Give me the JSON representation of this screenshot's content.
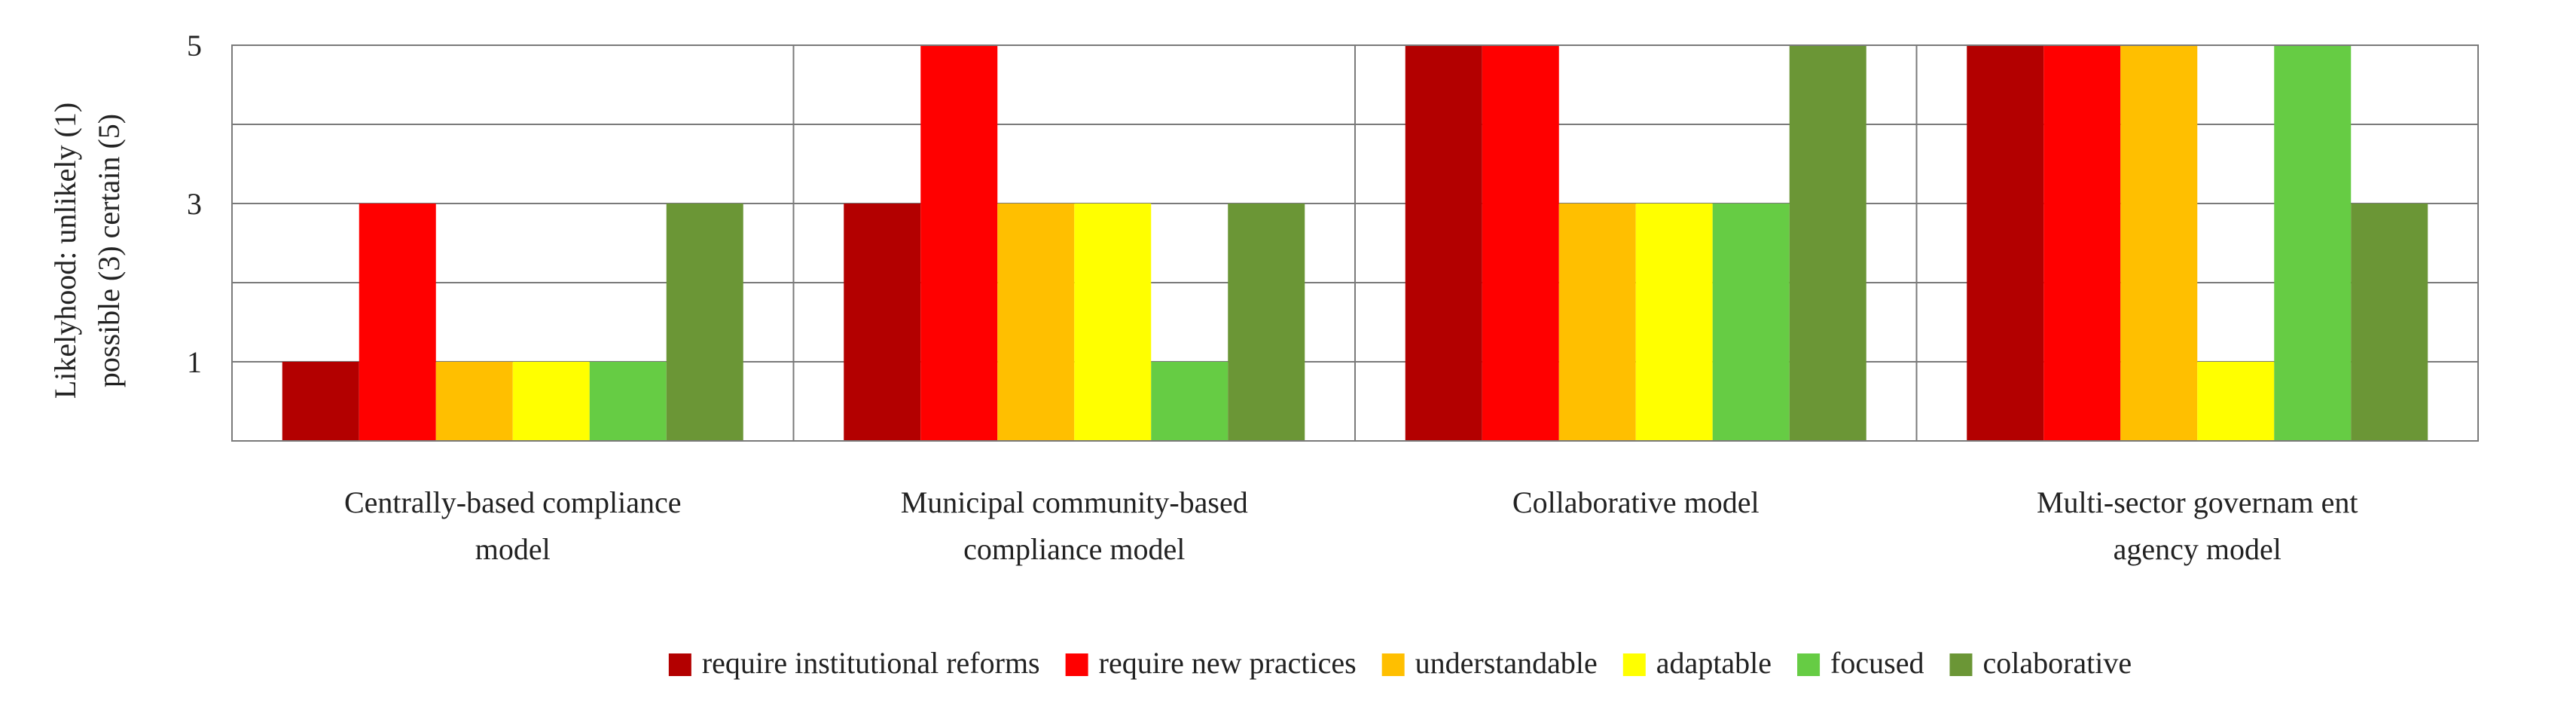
{
  "chart_data": {
    "type": "bar",
    "title": "",
    "ylabel_lines": [
      "Likelyhood:  unlikely  (1)",
      "possible (3)  certain (5)"
    ],
    "ylim": [
      0,
      5
    ],
    "yticks": [
      1,
      3,
      5
    ],
    "grid": true,
    "legend_position": "bottom",
    "categories": [
      [
        "Centrally-based compliance",
        "model"
      ],
      [
        "Municipal community-based",
        "compliance model"
      ],
      [
        "Collaborative model"
      ],
      [
        "Multi-sector governam ent",
        "agency model"
      ]
    ],
    "series": [
      {
        "name": "require institutional reforms",
        "color": "#b30000",
        "values": [
          1,
          3,
          5,
          5
        ]
      },
      {
        "name": "require new practices",
        "color": "#ff0000",
        "values": [
          3,
          5,
          5,
          5
        ]
      },
      {
        "name": "understandable",
        "color": "#ffbf00",
        "values": [
          1,
          3,
          3,
          5
        ]
      },
      {
        "name": "adaptable",
        "color": "#ffff00",
        "values": [
          1,
          3,
          3,
          1
        ]
      },
      {
        "name": "focused",
        "color": "#66cc44",
        "values": [
          1,
          1,
          3,
          5
        ]
      },
      {
        "name": "colaborative",
        "color": "#6b9636",
        "values": [
          3,
          3,
          5,
          3
        ]
      }
    ]
  }
}
